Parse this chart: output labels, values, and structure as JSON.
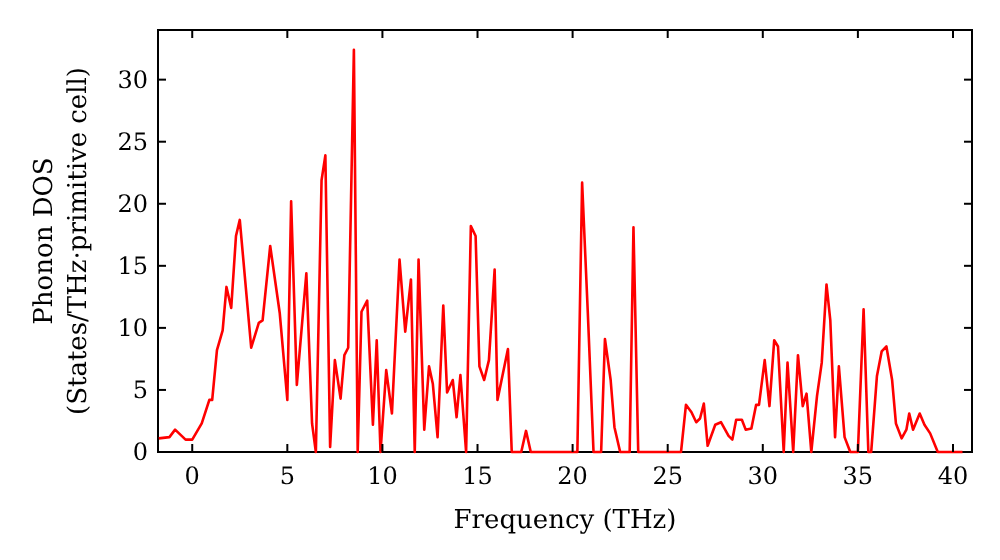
{
  "chart_data": {
    "type": "line",
    "xlabel": "Frequency (THz)",
    "ylabel": "Phonon DOS\n(States/THz·primitive cell)",
    "xlim": [
      -1.8,
      41
    ],
    "ylim": [
      0,
      34
    ],
    "xticks": [
      0,
      5,
      10,
      15,
      20,
      25,
      30,
      35,
      40
    ],
    "yticks": [
      0,
      5,
      10,
      15,
      20,
      25,
      30
    ],
    "grid": false,
    "marker": "none",
    "line_style": "solid",
    "series": [
      {
        "color": "#ff0000",
        "x": [
          -1.76,
          -1.2,
          -0.9,
          -0.35,
          0,
          0.5,
          0.9,
          1.05,
          1.3,
          1.6,
          1.8,
          2.05,
          2.3,
          2.5,
          3.1,
          3.5,
          3.7,
          4.1,
          4.6,
          5.0,
          5.2,
          5.5,
          6.0,
          6.3,
          6.5,
          6.8,
          7.0,
          7.25,
          7.5,
          7.8,
          8.0,
          8.2,
          8.5,
          8.7,
          8.9,
          9.2,
          9.5,
          9.7,
          9.9,
          10.2,
          10.5,
          10.9,
          11.2,
          11.5,
          11.7,
          11.9,
          12.2,
          12.45,
          12.65,
          12.9,
          13.2,
          13.4,
          13.7,
          13.9,
          14.1,
          14.4,
          14.65,
          14.9,
          15.1,
          15.35,
          15.6,
          15.9,
          16.05,
          16.6,
          16.8,
          17.3,
          17.55,
          17.8,
          20.25,
          20.5,
          20.8,
          21.1,
          21.5,
          21.7,
          22.0,
          22.2,
          22.5,
          23.0,
          23.2,
          23.45,
          25.7,
          25.96,
          26.25,
          26.5,
          26.7,
          26.9,
          27.1,
          27.5,
          27.8,
          28.2,
          28.4,
          28.6,
          28.9,
          29.1,
          29.4,
          29.65,
          29.8,
          30.1,
          30.35,
          30.6,
          30.8,
          31.1,
          31.3,
          31.6,
          31.85,
          32.1,
          32.3,
          32.55,
          32.85,
          33.1,
          33.35,
          33.55,
          33.8,
          34.0,
          34.3,
          34.6,
          35.0,
          35.3,
          35.55,
          35.7,
          36.0,
          36.25,
          36.5,
          36.8,
          37.0,
          37.3,
          37.55,
          37.7,
          37.9,
          38.25,
          38.5,
          38.8,
          39.2,
          40.5
        ],
        "values": [
          1.1,
          1.2,
          1.8,
          1.0,
          1.0,
          2.3,
          4.2,
          4.2,
          8.2,
          9.8,
          13.3,
          11.6,
          17.4,
          18.7,
          8.4,
          10.4,
          10.6,
          16.6,
          11.2,
          4.2,
          20.2,
          5.4,
          14.4,
          2.3,
          0,
          21.9,
          23.9,
          0.4,
          7.4,
          4.3,
          7.8,
          8.4,
          32.4,
          0,
          11.3,
          12.2,
          2.2,
          9.0,
          0,
          6.6,
          3.1,
          15.5,
          9.7,
          13.9,
          0,
          15.5,
          1.8,
          6.9,
          5.5,
          1.2,
          11.8,
          4.8,
          5.8,
          2.8,
          6.2,
          0,
          18.2,
          17.4,
          6.9,
          5.8,
          7.4,
          14.7,
          4.2,
          8.3,
          0,
          0,
          1.7,
          0,
          0,
          21.7,
          11.2,
          0,
          0,
          9.1,
          5.8,
          2.0,
          0,
          0,
          18.1,
          0,
          0,
          3.8,
          3.2,
          2.4,
          2.7,
          3.9,
          0.5,
          2.2,
          2.4,
          1.3,
          1.0,
          2.6,
          2.6,
          1.8,
          1.9,
          3.8,
          3.8,
          7.4,
          3.7,
          9.0,
          8.5,
          0,
          7.2,
          0,
          7.8,
          3.7,
          4.7,
          0,
          4.5,
          7.2,
          13.5,
          10.6,
          1.2,
          6.9,
          1.2,
          0,
          0,
          11.5,
          0,
          0,
          6.1,
          8.1,
          8.5,
          5.8,
          2.3,
          1.1,
          1.8,
          3.1,
          1.8,
          3.1,
          2.2,
          1.5,
          0,
          0
        ]
      }
    ]
  }
}
